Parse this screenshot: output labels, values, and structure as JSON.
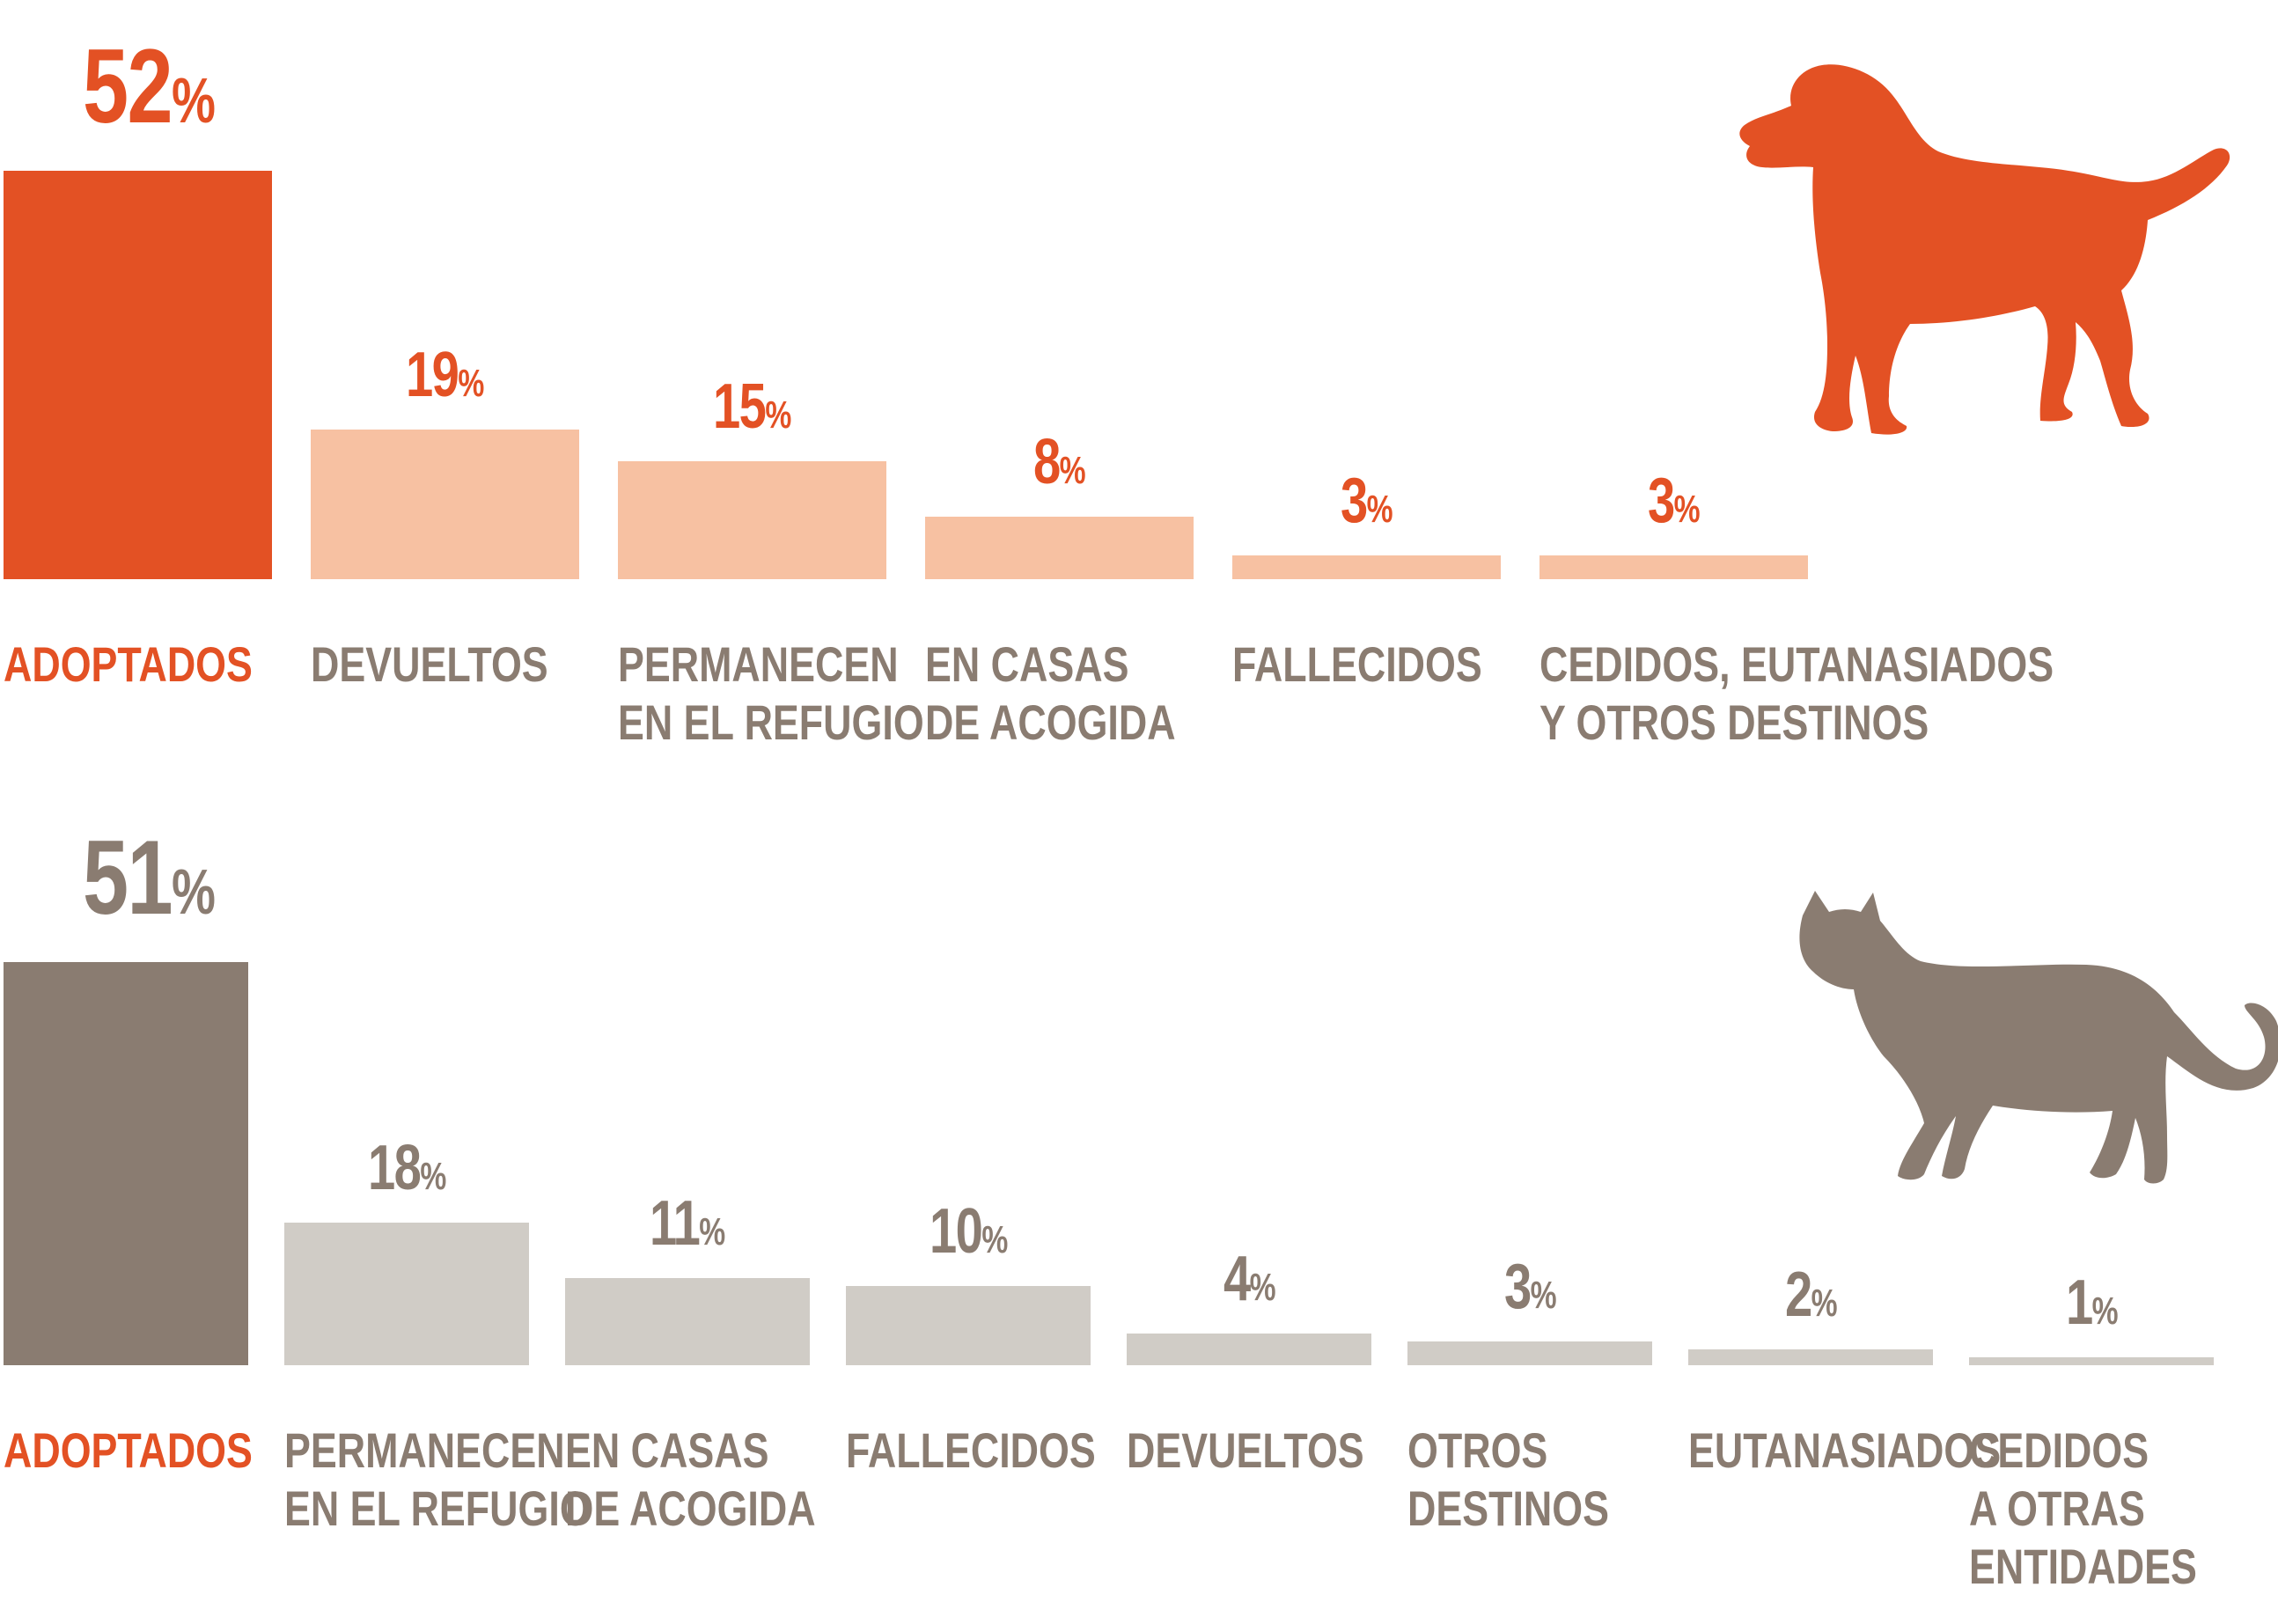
{
  "colors": {
    "dog_accent": "#e35124",
    "dog_light": "#f7c1a2",
    "cat_accent": "#8a7c71",
    "cat_light": "#d0ccc6",
    "adopted_label": "#e35124",
    "label_gray": "#8a7c71"
  },
  "icons": {
    "dog": "dog-silhouette-icon",
    "cat": "cat-silhouette-icon"
  },
  "chart_data": [
    {
      "type": "bar",
      "subject": "dog",
      "categories": [
        "ADOPTADOS",
        "DEVUELTOS",
        "PERMANECEN\nEN EL REFUGIO",
        "EN CASAS\nDE ACOGIDA",
        "FALLECIDOS",
        "CEDIDOS, EUTANASIADOS\nY OTROS DESTINOS"
      ],
      "values": [
        52,
        19,
        15,
        8,
        3,
        3
      ],
      "value_labels": [
        "52",
        "19",
        "15",
        "8",
        "3",
        "3"
      ],
      "unit": "%",
      "highlight_index": 0,
      "ylim": [
        0,
        52
      ]
    },
    {
      "type": "bar",
      "subject": "cat",
      "categories": [
        "ADOPTADOS",
        "PERMANECEN\nEN EL REFUGIO",
        "EN CASAS\nDE ACOGIDA",
        "FALLECIDOS",
        "DEVUELTOS",
        "OTROS\nDESTINOS",
        "EUTANASIADOS",
        "CEDIDOS\nA OTRAS\nENTIDADES"
      ],
      "values": [
        51,
        18,
        11,
        10,
        4,
        3,
        2,
        1
      ],
      "value_labels": [
        "51",
        "18",
        "11",
        "10",
        "4",
        "3",
        "2",
        "1"
      ],
      "unit": "%",
      "highlight_index": 0,
      "ylim": [
        0,
        51
      ]
    }
  ]
}
